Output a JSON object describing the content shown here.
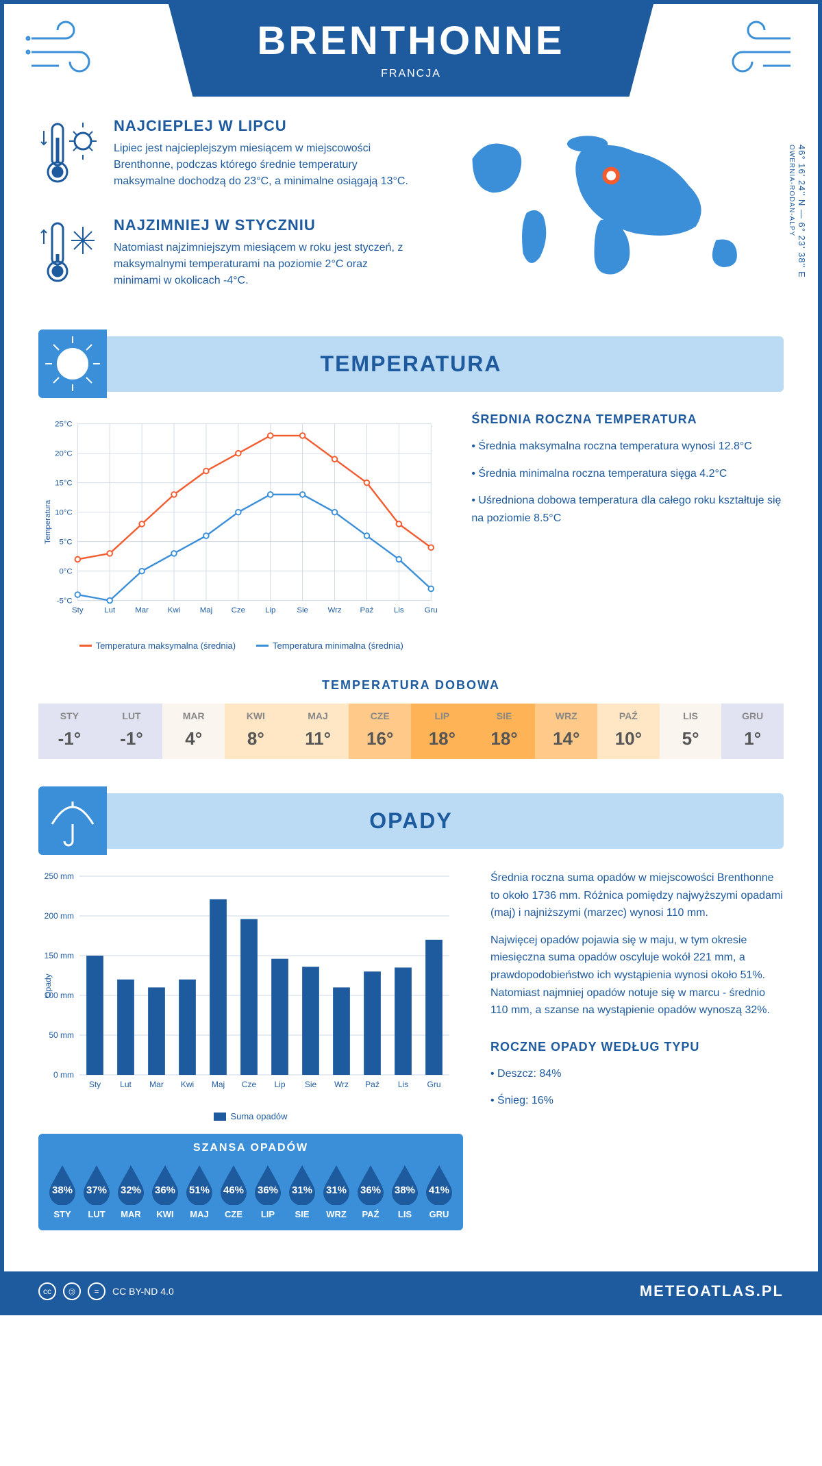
{
  "header": {
    "title": "BRENTHONNE",
    "subtitle": "FRANCJA"
  },
  "coords": "46° 16' 24'' N — 6° 23' 38'' E",
  "region": "OWERNIA-RODAN-ALPY",
  "facts": {
    "warm": {
      "title": "NAJCIEPLEJ W LIPCU",
      "text": "Lipiec jest najcieplejszym miesiącem w miejscowości Brenthonne, podczas którego średnie temperatury maksymalne dochodzą do 23°C, a minimalne osiągają 13°C."
    },
    "cold": {
      "title": "NAJZIMNIEJ W STYCZNIU",
      "text": "Natomiast najzimniejszym miesiącem w roku jest styczeń, z maksymalnymi temperaturami na poziomie 2°C oraz minimami w okolicach -4°C."
    }
  },
  "temperature": {
    "section_title": "TEMPERATURA",
    "months": [
      "Sty",
      "Lut",
      "Mar",
      "Kwi",
      "Maj",
      "Cze",
      "Lip",
      "Sie",
      "Wrz",
      "Paź",
      "Lis",
      "Gru"
    ],
    "max_series": [
      2,
      3,
      8,
      13,
      17,
      20,
      23,
      23,
      19,
      15,
      8,
      4
    ],
    "min_series": [
      -4,
      -5,
      0,
      3,
      6,
      10,
      13,
      13,
      10,
      6,
      2,
      -3
    ],
    "max_color": "#f25c2e",
    "min_color": "#3b8fd8",
    "grid_color": "#cfd8e6",
    "background": "#ffffff",
    "ylim": [
      -5,
      25
    ],
    "ytick_step": 5,
    "ylabel": "Temperatura",
    "legend_max": "Temperatura maksymalna (średnia)",
    "legend_min": "Temperatura minimalna (średnia)",
    "desc_title": "ŚREDNIA ROCZNA TEMPERATURA",
    "desc_1": "• Średnia maksymalna roczna temperatura wynosi 12.8°C",
    "desc_2": "• Średnia minimalna roczna temperatura sięga 4.2°C",
    "desc_3": "• Uśredniona dobowa temperatura dla całego roku kształtuje się na poziomie 8.5°C"
  },
  "dobowa": {
    "title": "TEMPERATURA DOBOWA",
    "months": [
      "STY",
      "LUT",
      "MAR",
      "KWI",
      "MAJ",
      "CZE",
      "LIP",
      "SIE",
      "WRZ",
      "PAŹ",
      "LIS",
      "GRU"
    ],
    "values": [
      "-1°",
      "-1°",
      "4°",
      "8°",
      "11°",
      "16°",
      "18°",
      "18°",
      "14°",
      "10°",
      "5°",
      "1°"
    ],
    "colors": [
      "#e1e3f2",
      "#e1e3f2",
      "#faf5ef",
      "#ffe7c5",
      "#ffe7c5",
      "#ffc98a",
      "#ffb357",
      "#ffb357",
      "#ffc98a",
      "#ffe7c5",
      "#faf5ef",
      "#e1e3f2"
    ]
  },
  "precip": {
    "section_title": "OPADY",
    "months": [
      "Sty",
      "Lut",
      "Mar",
      "Kwi",
      "Maj",
      "Cze",
      "Lip",
      "Sie",
      "Wrz",
      "Paź",
      "Lis",
      "Gru"
    ],
    "values": [
      150,
      120,
      110,
      120,
      221,
      196,
      146,
      136,
      110,
      130,
      135,
      170
    ],
    "bar_color": "#1e5a9e",
    "grid_color": "#cfd8e6",
    "ylim": [
      0,
      250
    ],
    "ytick_step": 50,
    "ylabel": "Opady",
    "legend": "Suma opadów",
    "para1": "Średnia roczna suma opadów w miejscowości Brenthonne to około 1736 mm. Różnica pomiędzy najwyższymi opadami (maj) i najniższymi (marzec) wynosi 110 mm.",
    "para2": "Najwięcej opadów pojawia się w maju, w tym okresie miesięczna suma opadów oscyluje wokół 221 mm, a prawdopodobieństwo ich wystąpienia wynosi około 51%. Natomiast najmniej opadów notuje się w marcu - średnio 110 mm, a szanse na wystąpienie opadów wynoszą 32%.",
    "szansa_title": "SZANSA OPADÓW",
    "szansa_months": [
      "STY",
      "LUT",
      "MAR",
      "KWI",
      "MAJ",
      "CZE",
      "LIP",
      "SIE",
      "WRZ",
      "PAŹ",
      "LIS",
      "GRU"
    ],
    "szansa_values": [
      "38%",
      "37%",
      "32%",
      "36%",
      "51%",
      "46%",
      "36%",
      "31%",
      "31%",
      "36%",
      "38%",
      "41%"
    ],
    "drop_color": "#1e5a9e",
    "type_title": "ROCZNE OPADY WEDŁUG TYPU",
    "type_1": "• Deszcz: 84%",
    "type_2": "• Śnieg: 16%"
  },
  "footer": {
    "license": "CC BY-ND 4.0",
    "site": "METEOATLAS.PL"
  },
  "colors": {
    "primary": "#1e5a9e",
    "light_blue": "#bbdaf4",
    "accent_blue": "#3b8fd8",
    "map_blue": "#3b8fd8",
    "marker": "#f25c2e"
  }
}
